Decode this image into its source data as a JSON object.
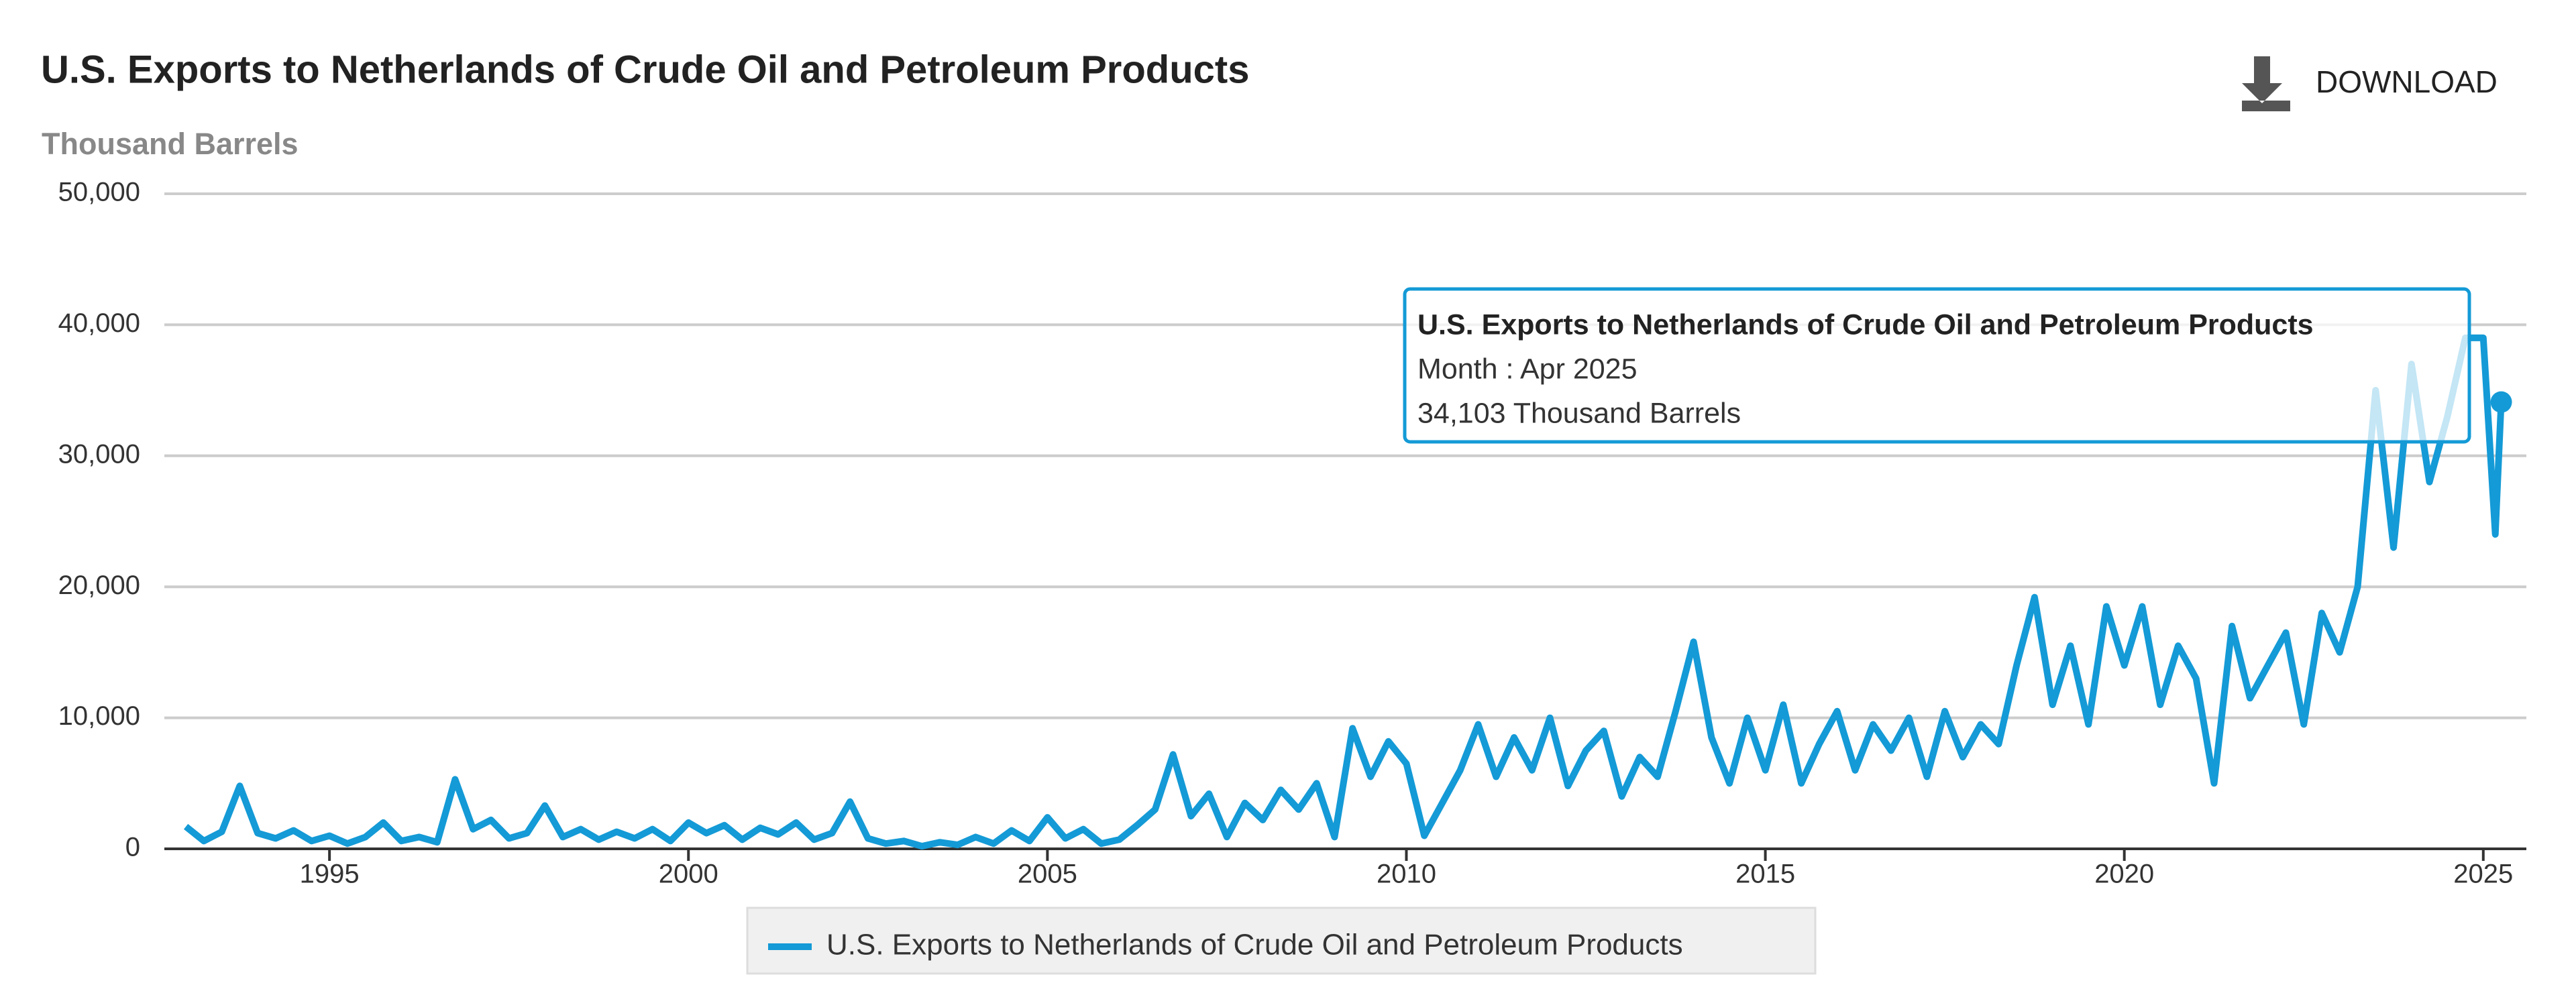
{
  "chart_data": {
    "type": "line",
    "title": "U.S. Exports to Netherlands of Crude Oil and Petroleum Products",
    "y_label": "Thousand Barrels",
    "download": "DOWNLOAD",
    "x": [
      1993,
      1993.25,
      1993.5,
      1993.75,
      1994,
      1994.25,
      1994.5,
      1994.75,
      1995,
      1995.25,
      1995.5,
      1995.75,
      1996,
      1996.25,
      1996.5,
      1996.75,
      1997,
      1997.25,
      1997.5,
      1997.75,
      1998,
      1998.25,
      1998.5,
      1998.75,
      1999,
      1999.25,
      1999.5,
      1999.75,
      2000,
      2000.25,
      2000.5,
      2000.75,
      2001,
      2001.25,
      2001.5,
      2001.75,
      2002,
      2002.25,
      2002.5,
      2002.75,
      2003,
      2003.25,
      2003.5,
      2003.75,
      2004,
      2004.25,
      2004.5,
      2004.75,
      2005,
      2005.25,
      2005.5,
      2005.75,
      2006,
      2006.25,
      2006.5,
      2006.75,
      2007,
      2007.25,
      2007.5,
      2007.75,
      2008,
      2008.25,
      2008.5,
      2008.75,
      2009,
      2009.25,
      2009.5,
      2009.75,
      2010,
      2010.25,
      2010.5,
      2010.75,
      2011,
      2011.25,
      2011.5,
      2011.75,
      2012,
      2012.25,
      2012.5,
      2012.75,
      2013,
      2013.25,
      2013.5,
      2013.75,
      2014,
      2014.25,
      2014.5,
      2014.75,
      2015,
      2015.25,
      2015.5,
      2015.75,
      2016,
      2016.25,
      2016.5,
      2016.75,
      2017,
      2017.25,
      2017.5,
      2017.75,
      2018,
      2018.25,
      2018.5,
      2018.75,
      2019,
      2019.25,
      2019.5,
      2019.75,
      2020,
      2020.25,
      2020.5,
      2020.75,
      2021,
      2021.25,
      2021.5,
      2021.75,
      2022,
      2022.25,
      2022.5,
      2022.75,
      2023,
      2023.25,
      2023.5,
      2023.75,
      2024,
      2024.25,
      2024.5,
      2024.75,
      2025,
      2025.167,
      2025.25
    ],
    "series": [
      {
        "name": "U.S. Exports to Netherlands of Crude Oil and Petroleum Products",
        "color": "#149ad6",
        "values": [
          1700,
          600,
          1300,
          4800,
          1200,
          800,
          1400,
          600,
          1000,
          400,
          900,
          2000,
          600,
          900,
          500,
          5300,
          1500,
          2200,
          800,
          1200,
          3300,
          900,
          1500,
          700,
          1300,
          800,
          1500,
          600,
          2000,
          1200,
          1800,
          700,
          1600,
          1100,
          2000,
          700,
          1200,
          3600,
          800,
          400,
          600,
          200,
          500,
          300,
          900,
          400,
          1400,
          600,
          2400,
          800,
          1500,
          400,
          700,
          1800,
          3000,
          7200,
          2500,
          4200,
          900,
          3500,
          2200,
          4500,
          3000,
          5000,
          900,
          9200,
          5500,
          8200,
          6500,
          1000,
          3500,
          6000,
          9500,
          5500,
          8500,
          6000,
          10000,
          4800,
          7500,
          9000,
          4000,
          7000,
          5500,
          10500,
          15800,
          8500,
          5000,
          10000,
          6000,
          11000,
          5000,
          8000,
          10500,
          6000,
          9500,
          7500,
          10000,
          5500,
          10500,
          7000,
          9500,
          8000,
          14000,
          19200,
          11000,
          15500,
          9500,
          18500,
          14000,
          18500,
          11000,
          15500,
          13000,
          5000,
          17000,
          11500,
          14000,
          16500,
          9500,
          18000,
          15000,
          20000,
          35000,
          23000,
          37000,
          28000,
          33000,
          39000,
          39000,
          24000,
          34103
        ]
      }
    ],
    "xlim": [
      1992.7,
      2025.6
    ],
    "xticks": [
      1995,
      2000,
      2005,
      2010,
      2015,
      2020,
      2025
    ],
    "ylim": [
      0,
      50000
    ],
    "yticks": [
      0,
      {
        "value": 10000,
        "label": "10,000"
      },
      {
        "value": 20000,
        "label": "20,000"
      },
      {
        "value": 30000,
        "label": "30,000"
      },
      {
        "value": 40000,
        "label": "40,000"
      },
      {
        "value": 50000,
        "label": "50,000"
      }
    ],
    "grid": true,
    "tooltip": {
      "title": "U.S. Exports to Netherlands of Crude Oil and Petroleum Products",
      "month": "Month : Apr 2025",
      "value": "34,103 Thousand Barrels"
    }
  }
}
